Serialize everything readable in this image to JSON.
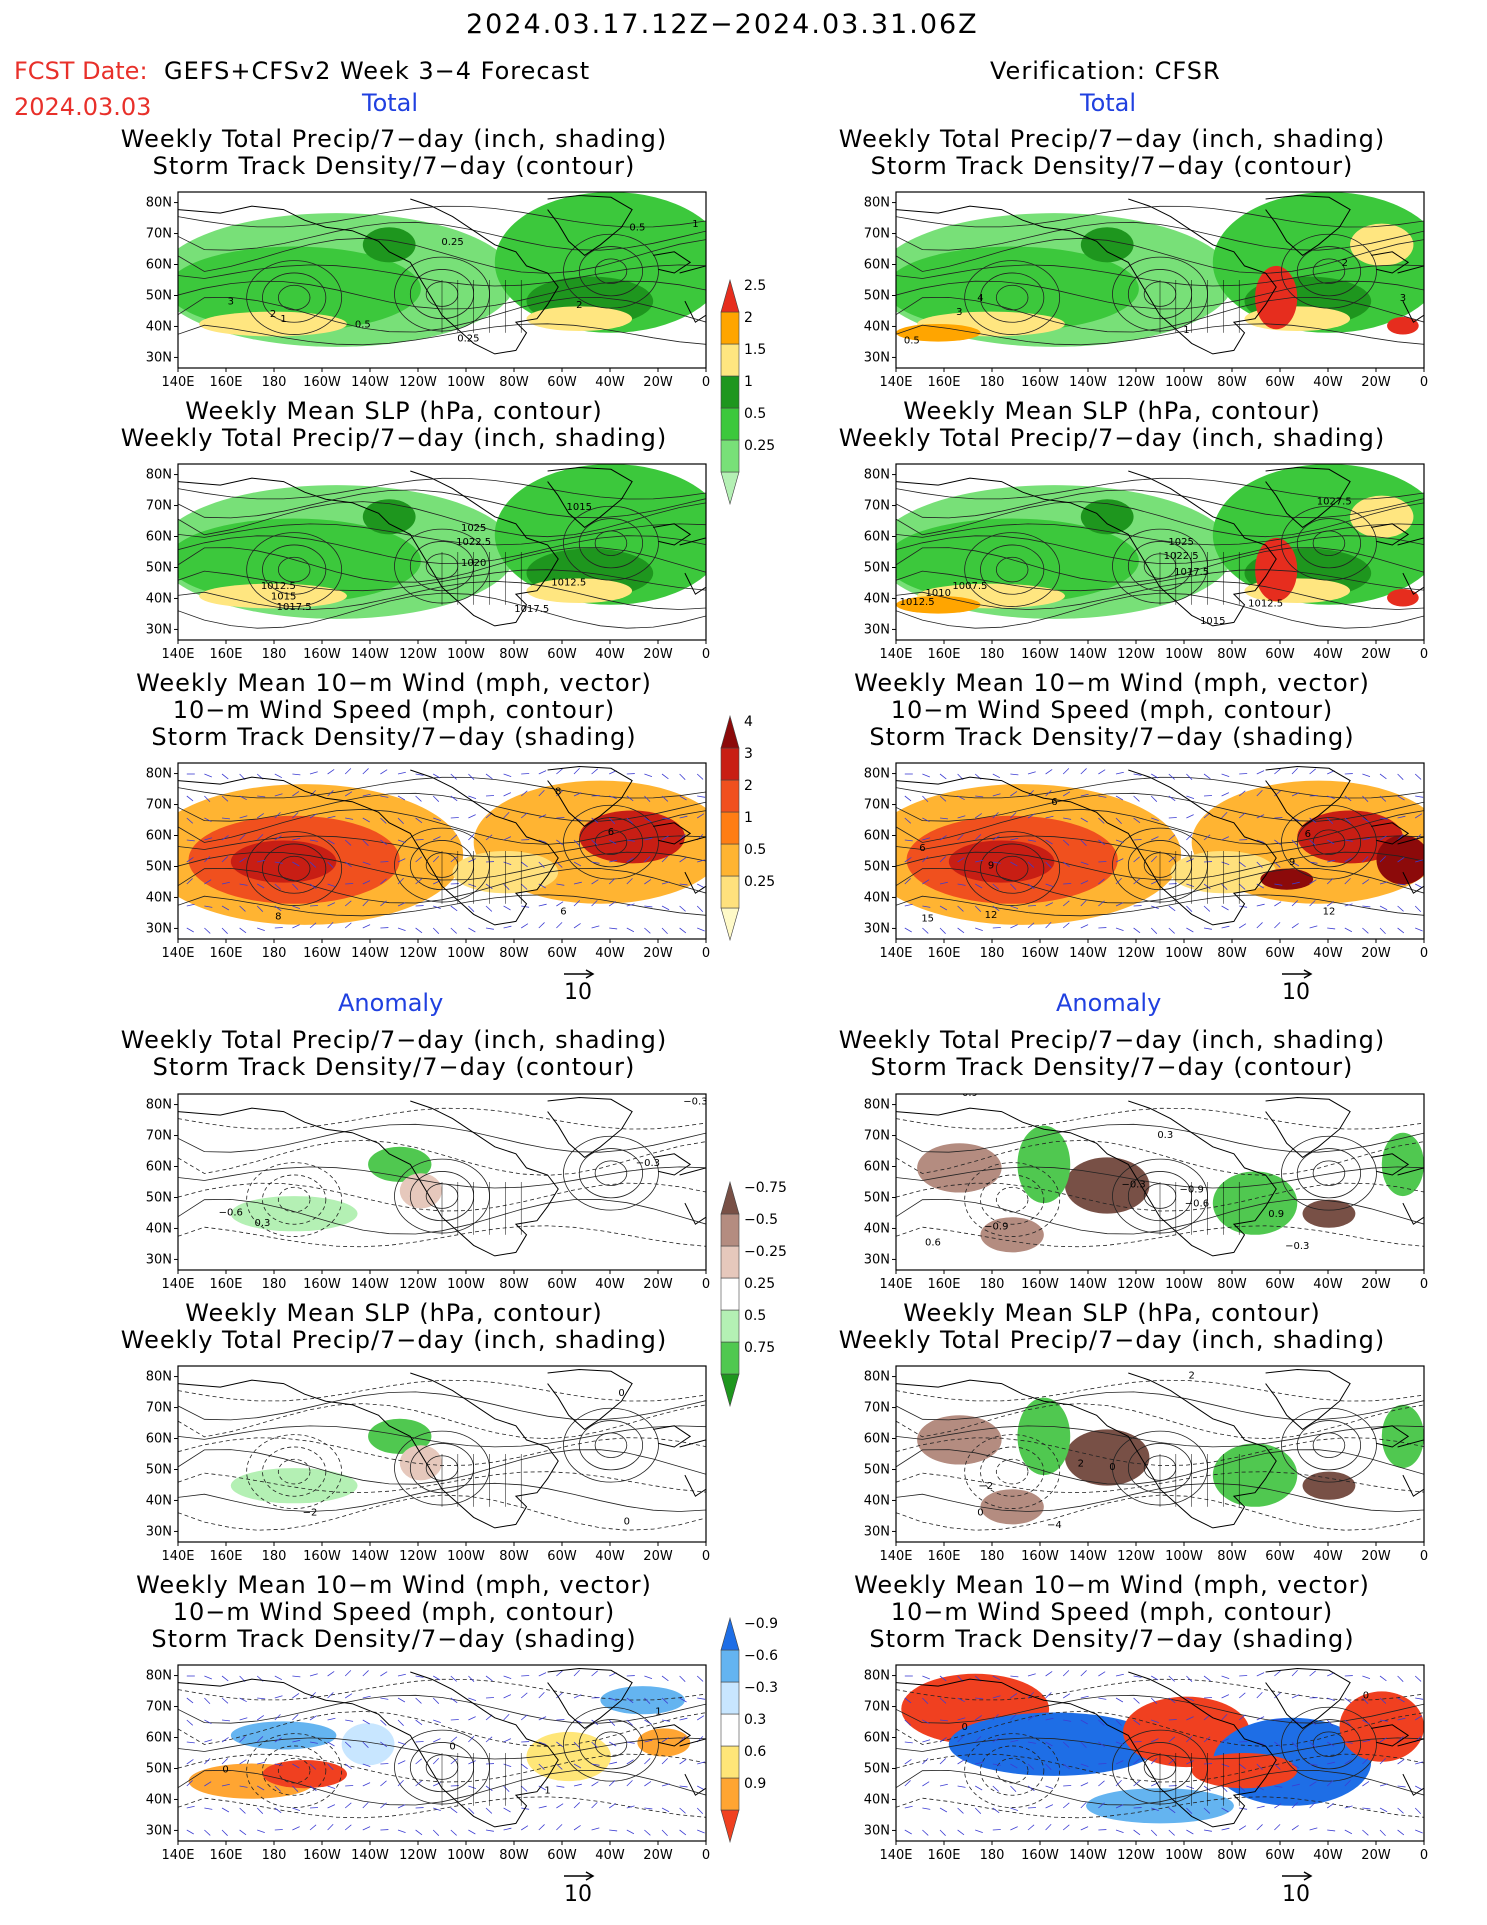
{
  "header": {
    "date_range": "2024.03.17.12Z−2024.03.31.06Z",
    "fcst_label": "FCST Date:",
    "forecast_name": "GEFS+CFSv2 Week 3−4 Forecast",
    "fcst_date": "2024.03.03",
    "verification": "Verification: CFSR"
  },
  "sections": {
    "total": "Total",
    "anomaly": "Anomaly"
  },
  "titles": {
    "precip_track": [
      "Weekly Total Precip/7−day (inch, shading)",
      "Storm Track Density/7−day (contour)"
    ],
    "slp_precip": [
      "Weekly Mean SLP (hPa, contour)",
      "Weekly Total Precip/7−day (inch, shading)"
    ],
    "wind": [
      "Weekly Mean 10−m Wind (mph, vector)",
      "10−m Wind Speed (mph, contour)",
      "Storm Track Density/7−day (shading)"
    ]
  },
  "axes": {
    "lon_labels": [
      "140E",
      "160E",
      "180",
      "160W",
      "140W",
      "120W",
      "100W",
      "80W",
      "60W",
      "40W",
      "20W",
      "0"
    ],
    "lat_labels": [
      "80N",
      "70N",
      "60N",
      "50N",
      "40N",
      "30N"
    ]
  },
  "vector_ref": {
    "value": "10"
  },
  "colorbars": {
    "precip_total": {
      "labels": [
        "0.25",
        "0.5",
        "1",
        "1.5",
        "2",
        "2.5"
      ],
      "colors": [
        "#b4f0b4",
        "#78e078",
        "#3cc83c",
        "#1e961e",
        "#ffe680",
        "#ffa500",
        "#e62d1e"
      ]
    },
    "track_total": {
      "labels": [
        "0.25",
        "0.5",
        "1",
        "2",
        "3",
        "4"
      ],
      "colors": [
        "#fffac8",
        "#ffe17d",
        "#ffb432",
        "#ff7d14",
        "#f0501e",
        "#c81e14",
        "#8c0a0a"
      ]
    },
    "precip_anom": {
      "labels": [
        "0.75",
        "0.5",
        "0.25",
        "−0.25",
        "−0.5",
        "−0.75"
      ],
      "colors": [
        "#1e961e",
        "#50c850",
        "#b4f0b4",
        "#ffffff",
        "#e6c8bc",
        "#b48c80",
        "#785046"
      ]
    },
    "track_anom": {
      "labels": [
        "0.9",
        "0.6",
        "0.3",
        "−0.3",
        "−0.6",
        "−0.9"
      ],
      "colors": [
        "#f04020",
        "#ffa532",
        "#ffe678",
        "#ffffff",
        "#c8e6ff",
        "#64b4f0",
        "#1e6ee6"
      ]
    }
  },
  "panels": [
    {
      "id": "fcst-total-precip",
      "title": "precip_track",
      "contour_labels": [
        [
          "3",
          0.1,
          0.64
        ],
        [
          "2",
          0.18,
          0.71
        ],
        [
          "1",
          0.2,
          0.74
        ],
        [
          "0.5",
          0.35,
          0.77
        ],
        [
          "0.25",
          0.52,
          0.3
        ],
        [
          "0.25",
          0.55,
          0.85
        ],
        [
          "2",
          0.76,
          0.66
        ],
        [
          "0.5",
          0.87,
          0.22
        ],
        [
          "1",
          0.98,
          0.2
        ]
      ]
    },
    {
      "id": "cfsr-total-precip",
      "title": "precip_track",
      "contour_labels": [
        [
          "4",
          0.16,
          0.62
        ],
        [
          "3",
          0.12,
          0.7
        ],
        [
          "0.5",
          0.03,
          0.86
        ],
        [
          "2",
          0.85,
          0.42
        ],
        [
          "3",
          0.96,
          0.62
        ],
        [
          "1",
          0.55,
          0.8
        ]
      ]
    },
    {
      "id": "fcst-total-slp",
      "title": "slp_precip",
      "contour_labels": [
        [
          "1015",
          0.76,
          0.26
        ],
        [
          "1025",
          0.56,
          0.38
        ],
        [
          "1022.5",
          0.56,
          0.46
        ],
        [
          "1020",
          0.56,
          0.58
        ],
        [
          "1012.5",
          0.74,
          0.69
        ],
        [
          "1017.5",
          0.67,
          0.84
        ],
        [
          "1012.5",
          0.19,
          0.71
        ],
        [
          "1015",
          0.2,
          0.77
        ],
        [
          "1017.5",
          0.22,
          0.83
        ]
      ]
    },
    {
      "id": "cfsr-total-slp",
      "title": "slp_precip",
      "contour_labels": [
        [
          "1027.5",
          0.83,
          0.23
        ],
        [
          "1025",
          0.54,
          0.46
        ],
        [
          "1022.5",
          0.54,
          0.54
        ],
        [
          "1017.5",
          0.56,
          0.63
        ],
        [
          "1012.5",
          0.7,
          0.81
        ],
        [
          "1015",
          0.6,
          0.91
        ],
        [
          "1007.5",
          0.14,
          0.71
        ],
        [
          "1010",
          0.08,
          0.75
        ],
        [
          "1012.5",
          0.04,
          0.8
        ]
      ]
    },
    {
      "id": "fcst-total-wind",
      "title": "wind",
      "contour_labels": [
        [
          "6",
          0.82,
          0.41
        ],
        [
          "8",
          0.19,
          0.89
        ],
        [
          "6",
          0.73,
          0.86
        ],
        [
          "8",
          0.72,
          0.18
        ]
      ]
    },
    {
      "id": "cfsr-total-wind",
      "title": "wind",
      "contour_labels": [
        [
          "6",
          0.05,
          0.5
        ],
        [
          "9",
          0.18,
          0.6
        ],
        [
          "6",
          0.78,
          0.42
        ],
        [
          "9",
          0.75,
          0.58
        ],
        [
          "15",
          0.06,
          0.9
        ],
        [
          "12",
          0.18,
          0.88
        ],
        [
          "12",
          0.82,
          0.86
        ],
        [
          "6",
          0.3,
          0.24
        ]
      ]
    },
    {
      "id": "fcst-anom-precip",
      "title": "precip_track",
      "contour_labels": [
        [
          "−0.3",
          0.98,
          0.06
        ],
        [
          "−0.3",
          0.89,
          0.41
        ],
        [
          "−0.6",
          0.1,
          0.69
        ],
        [
          "0.3",
          0.16,
          0.75
        ]
      ]
    },
    {
      "id": "cfsr-anom-precip",
      "title": "precip_track",
      "contour_labels": [
        [
          "0.9",
          0.14,
          0.01
        ],
        [
          "0.3",
          0.51,
          0.25
        ],
        [
          "−0.3",
          0.45,
          0.53
        ],
        [
          "−0.9",
          0.56,
          0.56
        ],
        [
          "−0.6",
          0.57,
          0.64
        ],
        [
          "0.9",
          0.72,
          0.7
        ],
        [
          "−0.3",
          0.76,
          0.88
        ],
        [
          "0.6",
          0.07,
          0.86
        ],
        [
          "−0.9",
          0.19,
          0.77
        ]
      ]
    },
    {
      "id": "fcst-anom-slp",
      "title": "slp_precip",
      "contour_labels": [
        [
          "−2",
          0.25,
          0.85
        ],
        [
          "0",
          0.85,
          0.9
        ],
        [
          "0",
          0.84,
          0.17
        ]
      ]
    },
    {
      "id": "cfsr-anom-slp",
      "title": "slp_precip",
      "contour_labels": [
        [
          "0",
          0.41,
          0.59
        ],
        [
          "2",
          0.35,
          0.57
        ],
        [
          "−4",
          0.3,
          0.92
        ],
        [
          "−2",
          0.17,
          0.7
        ],
        [
          "0",
          0.16,
          0.85
        ],
        [
          "2",
          0.56,
          0.07
        ]
      ]
    },
    {
      "id": "fcst-anom-wind",
      "title": "wind",
      "contour_labels": [
        [
          "0",
          0.09,
          0.61
        ],
        [
          "1",
          0.91,
          0.28
        ],
        [
          "0",
          0.52,
          0.48
        ],
        [
          "1",
          0.7,
          0.73
        ]
      ]
    },
    {
      "id": "cfsr-anom-wind",
      "title": "wind",
      "contour_labels": [
        [
          "0",
          0.13,
          0.37
        ],
        [
          "0",
          0.89,
          0.19
        ]
      ]
    }
  ]
}
